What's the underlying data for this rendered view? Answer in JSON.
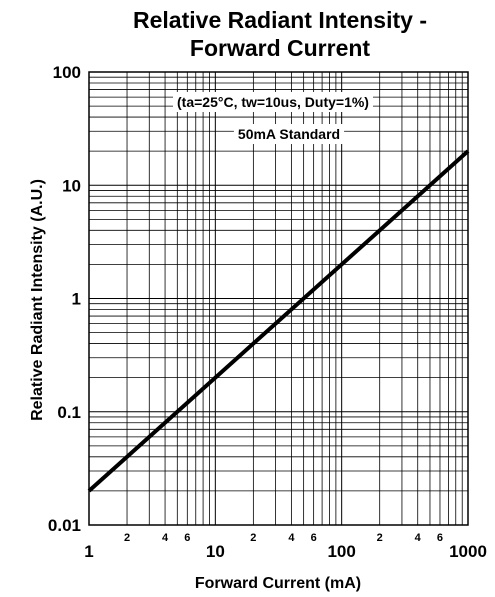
{
  "chart_data": {
    "type": "line",
    "title_lines": [
      "Relative Radiant Intensity -",
      "Forward Current"
    ],
    "xlabel": "Forward Current (mA)",
    "ylabel": "Relative Radiant Intensity (A.U.)",
    "x_scale": "log",
    "y_scale": "log",
    "xlim": [
      1,
      1000
    ],
    "ylim": [
      0.01,
      100
    ],
    "grid": true,
    "x_major_ticks": [
      {
        "value": 1,
        "label": "1"
      },
      {
        "value": 10,
        "label": "10"
      },
      {
        "value": 100,
        "label": "100"
      },
      {
        "value": 1000,
        "label": "1000"
      }
    ],
    "x_minor_ticks": [
      {
        "value": 2,
        "label": "2"
      },
      {
        "value": 4,
        "label": "4"
      },
      {
        "value": 6,
        "label": "6"
      },
      {
        "value": 20,
        "label": "2"
      },
      {
        "value": 40,
        "label": "4"
      },
      {
        "value": 60,
        "label": "6"
      },
      {
        "value": 200,
        "label": "2"
      },
      {
        "value": 400,
        "label": "4"
      },
      {
        "value": 600,
        "label": "6"
      }
    ],
    "y_major_ticks": [
      {
        "value": 0.01,
        "label": "0.01"
      },
      {
        "value": 0.1,
        "label": "0.1"
      },
      {
        "value": 1,
        "label": "1"
      },
      {
        "value": 10,
        "label": "10"
      },
      {
        "value": 100,
        "label": "100"
      }
    ],
    "annotations": [
      "(ta=25°C, tw=10us, Duty=1%)",
      "50mA Standard"
    ],
    "series": [
      {
        "x": [
          1,
          1000
        ],
        "y": [
          0.02,
          20
        ],
        "color": "#000000"
      }
    ]
  }
}
